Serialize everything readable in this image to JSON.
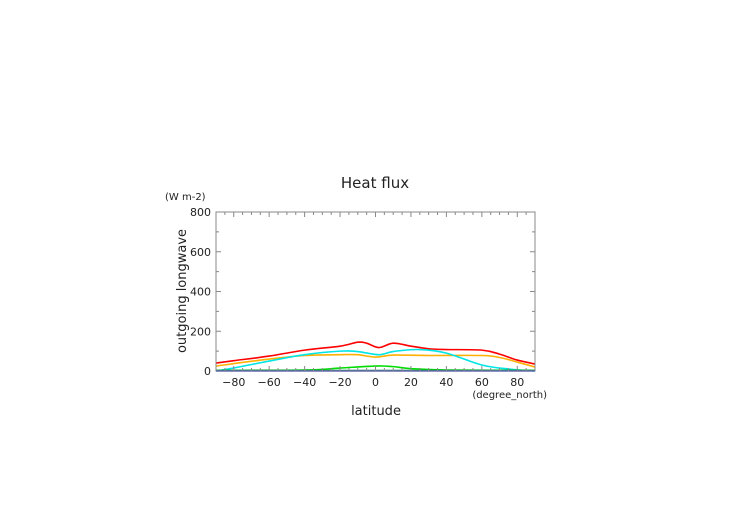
{
  "chart_data": {
    "type": "line",
    "title": "Heat flux",
    "xlabel": "latitude",
    "xunit": "(degree_north)",
    "ylabel": "outgoing longwave",
    "yunit": "(W m-2)",
    "xlim": [
      -90,
      90
    ],
    "ylim": [
      0,
      800
    ],
    "xticks": [
      -80,
      -60,
      -40,
      -20,
      0,
      20,
      40,
      60,
      80
    ],
    "yticks": [
      0,
      200,
      400,
      600,
      800
    ],
    "grid": false,
    "series": [
      {
        "color": "#ff0000",
        "x": [
          -90,
          -80,
          -60,
          -40,
          -20,
          -10,
          -5,
          2,
          10,
          20,
          30,
          40,
          60,
          70,
          80,
          90
        ],
        "y": [
          40,
          52,
          75,
          105,
          125,
          145,
          140,
          118,
          140,
          125,
          112,
          108,
          105,
          85,
          55,
          35
        ]
      },
      {
        "color": "#ffb000",
        "x": [
          -90,
          -60,
          -40,
          -20,
          -10,
          0,
          10,
          30,
          60,
          70,
          80,
          90
        ],
        "y": [
          25,
          60,
          78,
          82,
          82,
          70,
          80,
          78,
          78,
          68,
          45,
          20
        ]
      },
      {
        "color": "#00e5e5",
        "x": [
          -90,
          -80,
          -60,
          -40,
          -20,
          -10,
          2,
          10,
          25,
          40,
          60,
          75,
          90
        ],
        "y": [
          0,
          15,
          50,
          82,
          100,
          98,
          82,
          98,
          108,
          90,
          30,
          10,
          0
        ]
      },
      {
        "color": "#00dd00",
        "x": [
          -90,
          -40,
          -20,
          0,
          10,
          20,
          40,
          90
        ],
        "y": [
          3,
          5,
          15,
          25,
          22,
          12,
          5,
          3
        ]
      },
      {
        "color": "#008844",
        "x": [
          -90,
          0,
          90
        ],
        "y": [
          2,
          2,
          2
        ]
      },
      {
        "color": "#3333ff",
        "x": [
          -90,
          0,
          90
        ],
        "y": [
          0,
          0,
          0
        ]
      }
    ]
  }
}
